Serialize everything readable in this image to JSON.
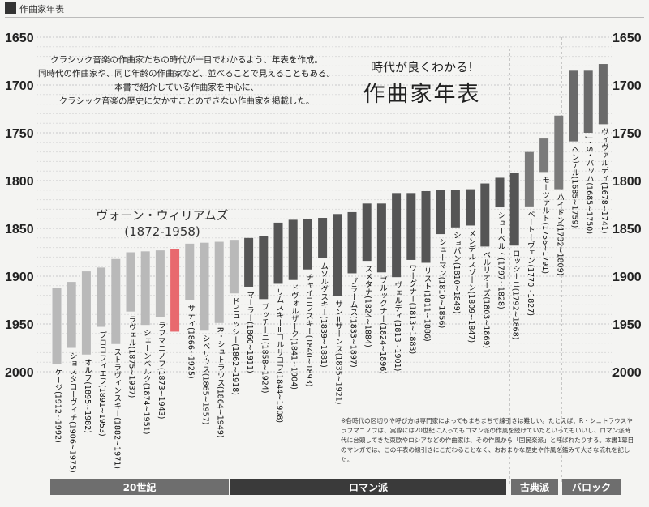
{
  "header": {
    "label": "作曲家年表"
  },
  "intro_lines": [
    "クラシック音楽の作曲家たちの時代が一目でわかるよう、年表を作成。",
    "同時代の作曲家や、同じ年齢の作曲家など、並べることで見えることもある。",
    "本書で紹介している作曲家を中心に、",
    "クラシック音楽の歴史に欠かすことのできない作曲家を掲載した。"
  ],
  "subtitle": "時代が良くわかる!",
  "title": "作曲家年表",
  "highlight": {
    "name": "ヴォーン・ウィリアムズ",
    "years": "(1872-1958)"
  },
  "note": "※各時代の区切りや呼び方は専門家によってもまちまちで線引きは難しい。たとえば、R・シュトラウスやラフマニノフは、実際には20世紀に入ってもロマン派の作風を続けていたといってもいいし、ロマン派時代に台頭してきた東欧やロシアなどの作曲家は、その作風から「国民楽派」と呼ばれたりする。本書1幕目のマンガでは、この年表の線引きにこだわることなく、おおまかな歴史や作風を鑑みて大きな流れを記した。",
  "colors": {
    "twentieth": "#b9b9b9",
    "romantic": "#555555",
    "classical": "#7a7a7a",
    "baroque": "#6a6a6a",
    "highlight": "#e8696e",
    "eraBar": "#6e6e6e",
    "eraBarDark": "#3a3a3a"
  },
  "chart_data": {
    "type": "bar",
    "orientation": "vertical-ranges",
    "y_axis": {
      "reversed": true,
      "ticks": [
        1650,
        1700,
        1750,
        1800,
        1850,
        1900,
        1950,
        2000
      ]
    },
    "series": [
      {
        "name": "ケージ",
        "label": "ケージ(1912~1992)",
        "birth": 1912,
        "death": 1992,
        "era": "twentieth"
      },
      {
        "name": "ショスタコーヴィチ",
        "label": "ショスタコーヴィチ(1906~1975)",
        "birth": 1906,
        "death": 1975,
        "era": "twentieth"
      },
      {
        "name": "オルフ",
        "label": "オルフ(1895~1982)",
        "birth": 1895,
        "death": 1982,
        "era": "twentieth"
      },
      {
        "name": "プロコフィエフ",
        "label": "プロコフィエフ(1891~1953)",
        "birth": 1891,
        "death": 1953,
        "era": "twentieth"
      },
      {
        "name": "ストラヴィンスキー",
        "label": "ストラヴィンスキー(1882~1971)",
        "birth": 1882,
        "death": 1971,
        "era": "twentieth"
      },
      {
        "name": "ラヴェル",
        "label": "ラヴェル(1875~1937)",
        "birth": 1875,
        "death": 1937,
        "era": "twentieth"
      },
      {
        "name": "シェーンベルク",
        "label": "シェーンベルク(1874~1951)",
        "birth": 1874,
        "death": 1951,
        "era": "twentieth"
      },
      {
        "name": "ラフマニノフ",
        "label": "ラフマニノフ(1873~1943)",
        "birth": 1873,
        "death": 1943,
        "era": "twentieth"
      },
      {
        "name": "ヴォーン・ウィリアムズ",
        "label": "",
        "birth": 1872,
        "death": 1958,
        "era": "highlight"
      },
      {
        "name": "サティ",
        "label": "サティ(1866~1925)",
        "birth": 1866,
        "death": 1925,
        "era": "twentieth"
      },
      {
        "name": "シベリウス",
        "label": "シベリウス(1865~1957)",
        "birth": 1865,
        "death": 1957,
        "era": "twentieth"
      },
      {
        "name": "R・シュトラウス",
        "label": "R・シュトラウス(1864~1949)",
        "birth": 1864,
        "death": 1949,
        "era": "twentieth"
      },
      {
        "name": "ドビュッシー",
        "label": "ドビュッシー(1862~1918)",
        "birth": 1862,
        "death": 1918,
        "era": "twentieth"
      },
      {
        "name": "マーラー",
        "label": "マーラー(1860~1911)",
        "birth": 1860,
        "death": 1911,
        "era": "romantic"
      },
      {
        "name": "プッチーニ",
        "label": "プッチーニ(1858~1924)",
        "birth": 1858,
        "death": 1924,
        "era": "romantic"
      },
      {
        "name": "リムスキー=コルサコフ",
        "label": "リムスキー=コルサコフ(1844~1908)",
        "birth": 1844,
        "death": 1908,
        "era": "romantic"
      },
      {
        "name": "ドヴォルザーク",
        "label": "ドヴォルザーク(1841~1904)",
        "birth": 1841,
        "death": 1904,
        "era": "romantic"
      },
      {
        "name": "チャイコフスキー",
        "label": "チャイコフスキー(1840~1893)",
        "birth": 1840,
        "death": 1893,
        "era": "romantic"
      },
      {
        "name": "ムソルグスキー",
        "label": "ムソルグスキー(1839~1881)",
        "birth": 1839,
        "death": 1881,
        "era": "romantic"
      },
      {
        "name": "サン=サーンス",
        "label": "サン=サーンス(1835~1921)",
        "birth": 1835,
        "death": 1921,
        "era": "romantic"
      },
      {
        "name": "ブラームス",
        "label": "ブラームス(1833~1897)",
        "birth": 1833,
        "death": 1897,
        "era": "romantic"
      },
      {
        "name": "スメタナ",
        "label": "スメタナ(1824~1884)",
        "birth": 1824,
        "death": 1884,
        "era": "romantic"
      },
      {
        "name": "ブルックナー",
        "label": "ブルックナー(1824~1896)",
        "birth": 1824,
        "death": 1896,
        "era": "romantic"
      },
      {
        "name": "ヴェルディ",
        "label": "ヴェルディ(1813~1901)",
        "birth": 1813,
        "death": 1901,
        "era": "romantic"
      },
      {
        "name": "ワーグナー",
        "label": "ワーグナー(1813~1883)",
        "birth": 1813,
        "death": 1883,
        "era": "romantic"
      },
      {
        "name": "リスト",
        "label": "リスト(1811~1886)",
        "birth": 1811,
        "death": 1886,
        "era": "romantic"
      },
      {
        "name": "シューマン",
        "label": "シューマン(1810~1856)",
        "birth": 1810,
        "death": 1856,
        "era": "romantic"
      },
      {
        "name": "ショパン",
        "label": "ショパン(1810~1849)",
        "birth": 1810,
        "death": 1849,
        "era": "romantic"
      },
      {
        "name": "メンデルスゾーン",
        "label": "メンデルスゾーン(1809~1847)",
        "birth": 1809,
        "death": 1847,
        "era": "romantic"
      },
      {
        "name": "ベルリオーズ",
        "label": "ベルリオーズ(1803~1869)",
        "birth": 1803,
        "death": 1869,
        "era": "romantic"
      },
      {
        "name": "シューベルト",
        "label": "シューベルト(1797~1828)",
        "birth": 1797,
        "death": 1828,
        "era": "romantic"
      },
      {
        "name": "ロッシーニ",
        "label": "ロッシーニ(1792~1868)",
        "birth": 1792,
        "death": 1868,
        "era": "romantic"
      },
      {
        "name": "ベートーヴェン",
        "label": "ベートーヴェン(1770~1827)",
        "birth": 1770,
        "death": 1827,
        "era": "classical"
      },
      {
        "name": "モーツァルト",
        "label": "モーツァルト(1756~1791)",
        "birth": 1756,
        "death": 1791,
        "era": "classical"
      },
      {
        "name": "ハイドン",
        "label": "ハイドン(1732~1809)",
        "birth": 1732,
        "death": 1809,
        "era": "classical"
      },
      {
        "name": "ヘンデル",
        "label": "ヘンデル(1685~1759)",
        "birth": 1685,
        "death": 1759,
        "era": "baroque"
      },
      {
        "name": "J・S・バッハ",
        "label": "J・S・バッハ(1685~1750)",
        "birth": 1685,
        "death": 1750,
        "era": "baroque"
      },
      {
        "name": "ヴィヴァルディ",
        "label": "ヴィヴァルディ(1678~1741)",
        "birth": 1678,
        "death": 1741,
        "era": "baroque"
      }
    ],
    "eras": [
      {
        "key": "twentieth",
        "name": "20世紀"
      },
      {
        "key": "romantic",
        "name": "ロマン派"
      },
      {
        "key": "classical",
        "name": "古典派"
      },
      {
        "key": "baroque",
        "name": "バロック"
      }
    ]
  }
}
